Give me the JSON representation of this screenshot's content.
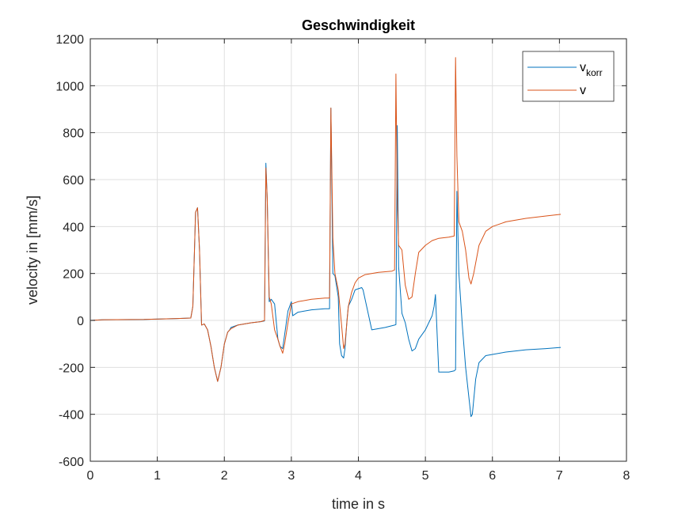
{
  "chart_data": {
    "type": "line",
    "title": "Geschwindigkeit",
    "xlabel": "time in s",
    "ylabel": "velocity in [mm/s]",
    "xlim": [
      0,
      8
    ],
    "ylim": [
      -600,
      1200
    ],
    "xticks": [
      0,
      1,
      2,
      3,
      4,
      5,
      6,
      7,
      8
    ],
    "yticks": [
      -600,
      -400,
      -200,
      0,
      200,
      400,
      600,
      800,
      1000,
      1200
    ],
    "grid": true,
    "legend_position": "top-right",
    "series": [
      {
        "name": "v",
        "name_main": "v",
        "name_sub": "korr",
        "color": "#0072BD",
        "x": [
          0,
          0.2,
          0.8,
          1.3,
          1.5,
          1.53,
          1.57,
          1.6,
          1.63,
          1.66,
          1.7,
          1.75,
          1.8,
          1.85,
          1.9,
          1.95,
          2.0,
          2.05,
          2.08,
          2.1,
          2.2,
          2.4,
          2.55,
          2.6,
          2.62,
          2.64,
          2.67,
          2.7,
          2.75,
          2.8,
          2.83,
          2.87,
          2.9,
          2.95,
          3.0,
          3.02,
          3.1,
          3.3,
          3.5,
          3.57,
          3.59,
          3.62,
          3.65,
          3.7,
          3.72,
          3.75,
          3.78,
          3.8,
          3.83,
          3.85,
          3.9,
          3.95,
          4.05,
          4.07,
          4.2,
          4.4,
          4.54,
          4.56,
          4.58,
          4.6,
          4.65,
          4.7,
          4.75,
          4.8,
          4.85,
          4.9,
          5.0,
          5.1,
          5.13,
          5.15,
          5.2,
          5.35,
          5.43,
          5.45,
          5.47,
          5.5,
          5.55,
          5.6,
          5.65,
          5.68,
          5.7,
          5.75,
          5.8,
          5.9,
          6.0,
          6.2,
          6.5,
          6.8,
          7.02
        ],
        "y": [
          0,
          3,
          4,
          8,
          10,
          60,
          460,
          480,
          300,
          -20,
          -15,
          -40,
          -110,
          -200,
          -260,
          -200,
          -100,
          -50,
          -40,
          -30,
          -20,
          -10,
          -5,
          -2,
          670,
          520,
          80,
          90,
          70,
          -80,
          -110,
          -120,
          -60,
          40,
          80,
          20,
          35,
          45,
          50,
          50,
          905,
          200,
          190,
          100,
          -100,
          -150,
          -160,
          -120,
          0,
          60,
          90,
          130,
          140,
          130,
          -40,
          -30,
          -20,
          -18,
          830,
          230,
          30,
          -10,
          -80,
          -130,
          -120,
          -80,
          -40,
          20,
          60,
          110,
          -220,
          -220,
          -215,
          -210,
          550,
          200,
          -20,
          -200,
          -330,
          -410,
          -400,
          -250,
          -180,
          -150,
          -145,
          -135,
          -125,
          -120,
          -115
        ]
      },
      {
        "name": "v",
        "color": "#D95319",
        "x": [
          0,
          0.2,
          0.8,
          1.3,
          1.5,
          1.53,
          1.57,
          1.6,
          1.63,
          1.66,
          1.7,
          1.75,
          1.8,
          1.85,
          1.9,
          1.95,
          2.0,
          2.05,
          2.1,
          2.2,
          2.4,
          2.55,
          2.6,
          2.62,
          2.64,
          2.67,
          2.7,
          2.75,
          2.8,
          2.83,
          2.87,
          2.9,
          2.95,
          3.0,
          3.1,
          3.3,
          3.5,
          3.57,
          3.59,
          3.62,
          3.65,
          3.7,
          3.75,
          3.78,
          3.8,
          3.85,
          3.9,
          3.95,
          4.0,
          4.1,
          4.3,
          4.5,
          4.54,
          4.56,
          4.58,
          4.6,
          4.65,
          4.7,
          4.75,
          4.8,
          4.85,
          4.9,
          5.0,
          5.1,
          5.2,
          5.35,
          5.43,
          5.45,
          5.47,
          5.5,
          5.55,
          5.6,
          5.65,
          5.68,
          5.72,
          5.8,
          5.9,
          6.0,
          6.2,
          6.5,
          6.8,
          7.02
        ],
        "y": [
          0,
          3,
          4,
          8,
          10,
          60,
          460,
          480,
          300,
          -20,
          -15,
          -40,
          -110,
          -200,
          -260,
          -200,
          -100,
          -50,
          -35,
          -20,
          -10,
          -5,
          0,
          650,
          520,
          100,
          70,
          -40,
          -80,
          -110,
          -140,
          -100,
          -10,
          70,
          80,
          90,
          95,
          95,
          905,
          350,
          200,
          130,
          -20,
          -120,
          -100,
          60,
          120,
          160,
          180,
          195,
          205,
          210,
          215,
          1050,
          520,
          320,
          300,
          150,
          90,
          100,
          200,
          290,
          320,
          340,
          350,
          355,
          360,
          1120,
          700,
          420,
          380,
          300,
          180,
          155,
          200,
          320,
          380,
          400,
          420,
          435,
          445,
          452
        ]
      }
    ]
  }
}
